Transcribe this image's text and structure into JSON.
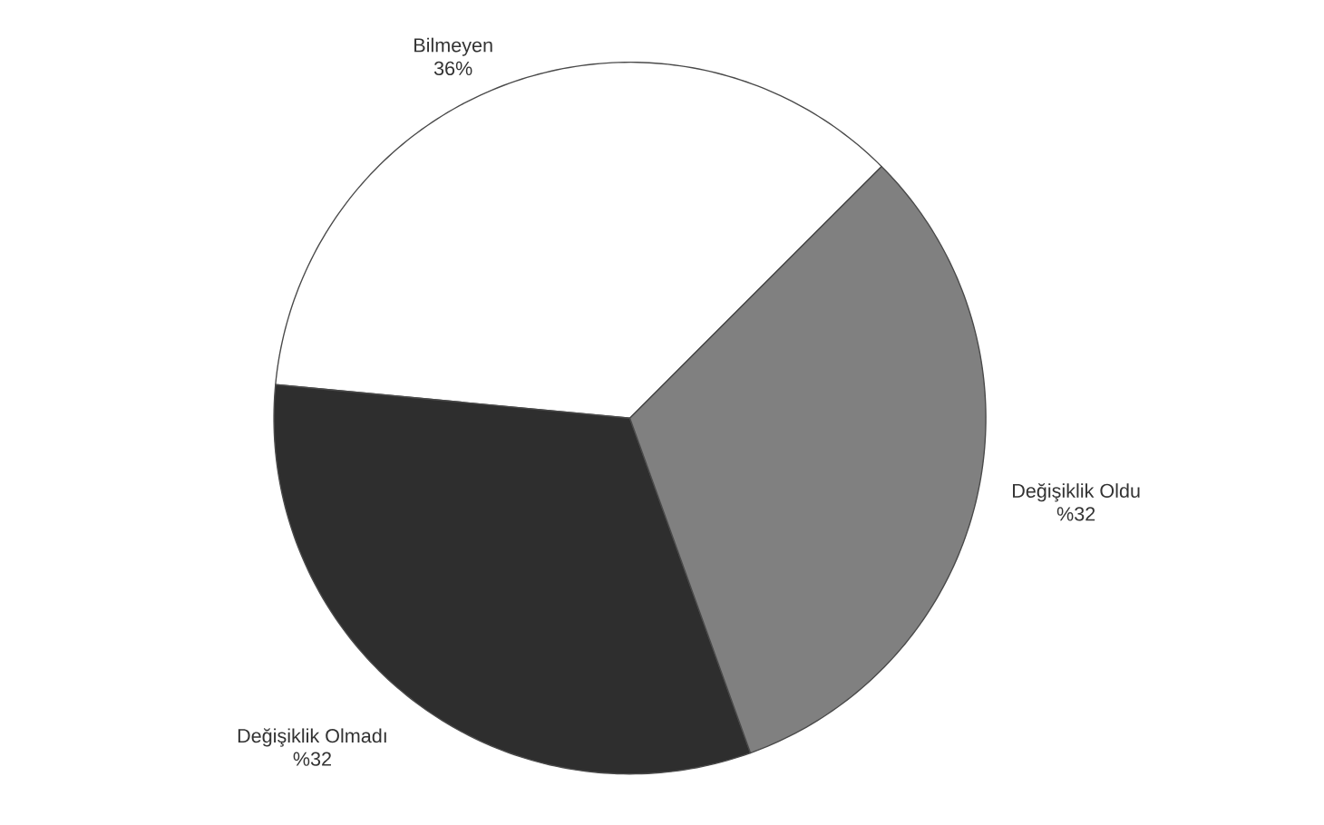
{
  "chart_data": {
    "type": "pie",
    "categories": [
      "Bilmeyen",
      "Değişiklik Olmadı",
      "Değişiklik Oldu"
    ],
    "values": [
      36,
      32,
      32
    ],
    "colors": [
      "#ffffff",
      "#2e2e2e",
      "#808080"
    ],
    "value_labels": [
      "36%",
      "%32",
      "%32"
    ]
  }
}
